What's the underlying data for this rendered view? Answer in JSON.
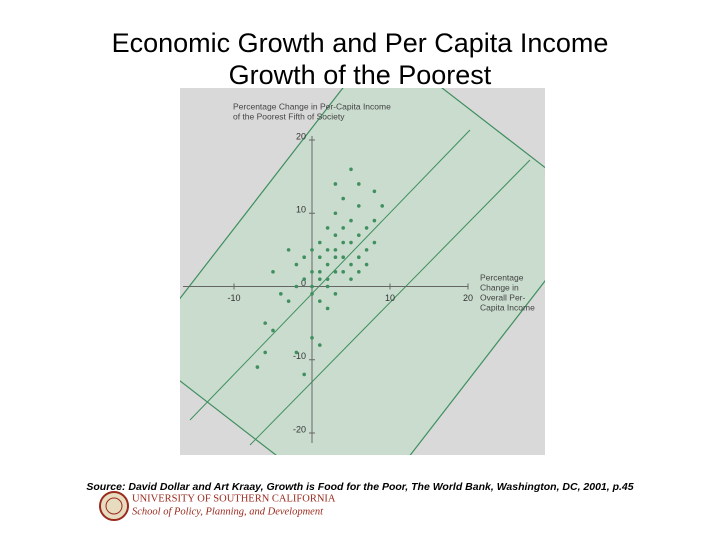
{
  "slide": {
    "title_lines": [
      "Economic Growth and Per Capita Income",
      "Growth of the Poorest"
    ],
    "source": "Source: David Dollar and Art Kraay, Growth is Food for the Poor, The World Bank, Washington, DC, 2001, p.45",
    "logo_lines": [
      "UNIVERSITY OF SOUTHERN CALIFORNIA",
      "School of Policy, Planning, and Development"
    ]
  },
  "chart_data": {
    "type": "scatter",
    "ylabel": [
      "Percentage Change in Per-Capita Income",
      "of the Poorest Fifth of Society"
    ],
    "xlabel": [
      "Percentage",
      "Change in",
      "Overall Per-",
      "Capita Income"
    ],
    "xlim": [
      -15,
      20
    ],
    "ylim": [
      -20,
      20
    ],
    "xticks": [
      -10,
      10,
      20
    ],
    "yticks": [
      -20,
      -10,
      0,
      10,
      20
    ],
    "color": "#3f8f5f",
    "x": [
      2,
      3,
      4,
      1,
      5,
      3,
      2,
      6,
      4,
      3,
      5,
      2,
      1,
      0,
      -1,
      4,
      6,
      7,
      8,
      5,
      3,
      2,
      4,
      6,
      -2,
      -3,
      0,
      1,
      2,
      3,
      5,
      7,
      8,
      9,
      6,
      4,
      3,
      1,
      0,
      -1,
      -2,
      -4,
      -5,
      -6,
      -7,
      -2,
      -1,
      0,
      1,
      2,
      6,
      7,
      0,
      1,
      -3,
      8,
      5,
      3,
      -5,
      -6
    ],
    "values": [
      3,
      5,
      4,
      2,
      6,
      2,
      1,
      7,
      8,
      4,
      3,
      5,
      4,
      2,
      1,
      2,
      4,
      8,
      9,
      9,
      10,
      8,
      12,
      14,
      0,
      -2,
      -1,
      -2,
      0,
      -1,
      1,
      5,
      6,
      11,
      11,
      6,
      7,
      6,
      5,
      4,
      3,
      -1,
      -6,
      -9,
      -11,
      -9,
      -12,
      -7,
      -8,
      -3,
      2,
      3,
      0,
      1,
      5,
      13,
      16,
      14,
      2,
      -5
    ]
  }
}
